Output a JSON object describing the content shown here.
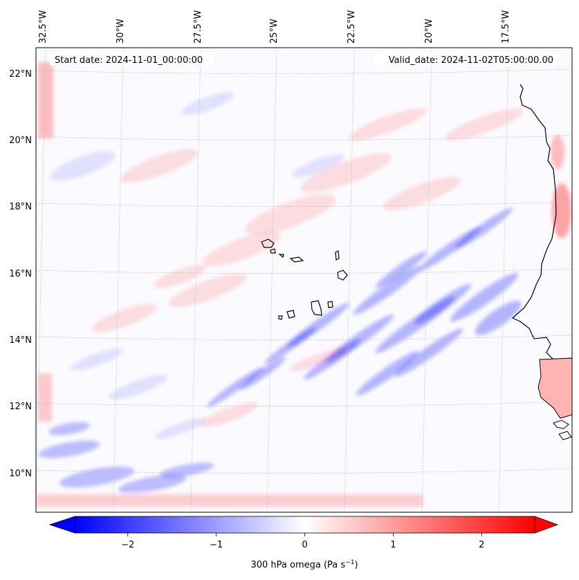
{
  "map": {
    "start_label": "Start date: 2024-11-01_00:00:00",
    "valid_label": "Valid_date: 2024-11-02T05:00:00.00",
    "lon_labels": [
      "32.5°W",
      "30°W",
      "27.5°W",
      "25°W",
      "22.5°W",
      "20°W",
      "17.5°W"
    ],
    "lat_labels": [
      "22°N",
      "20°N",
      "18°N",
      "16°N",
      "14°N",
      "12°N",
      "10°N"
    ]
  },
  "colorbar": {
    "label": "300 hPa omega (Pa s",
    "label_sup": "−1",
    "label_close": ")",
    "ticks": [
      "−2",
      "−1",
      "0",
      "1",
      "2"
    ],
    "tick_values": [
      -2,
      -1,
      0,
      1,
      2
    ],
    "vmin": -2.6,
    "vmax": 2.6,
    "colormap": "bwr",
    "extend": "both"
  },
  "colors": {
    "negative": "#0000ff",
    "neutral": "#ffffff",
    "positive": "#ff0000",
    "coastline": "#000000",
    "gridline": "#b0b0b0"
  }
}
